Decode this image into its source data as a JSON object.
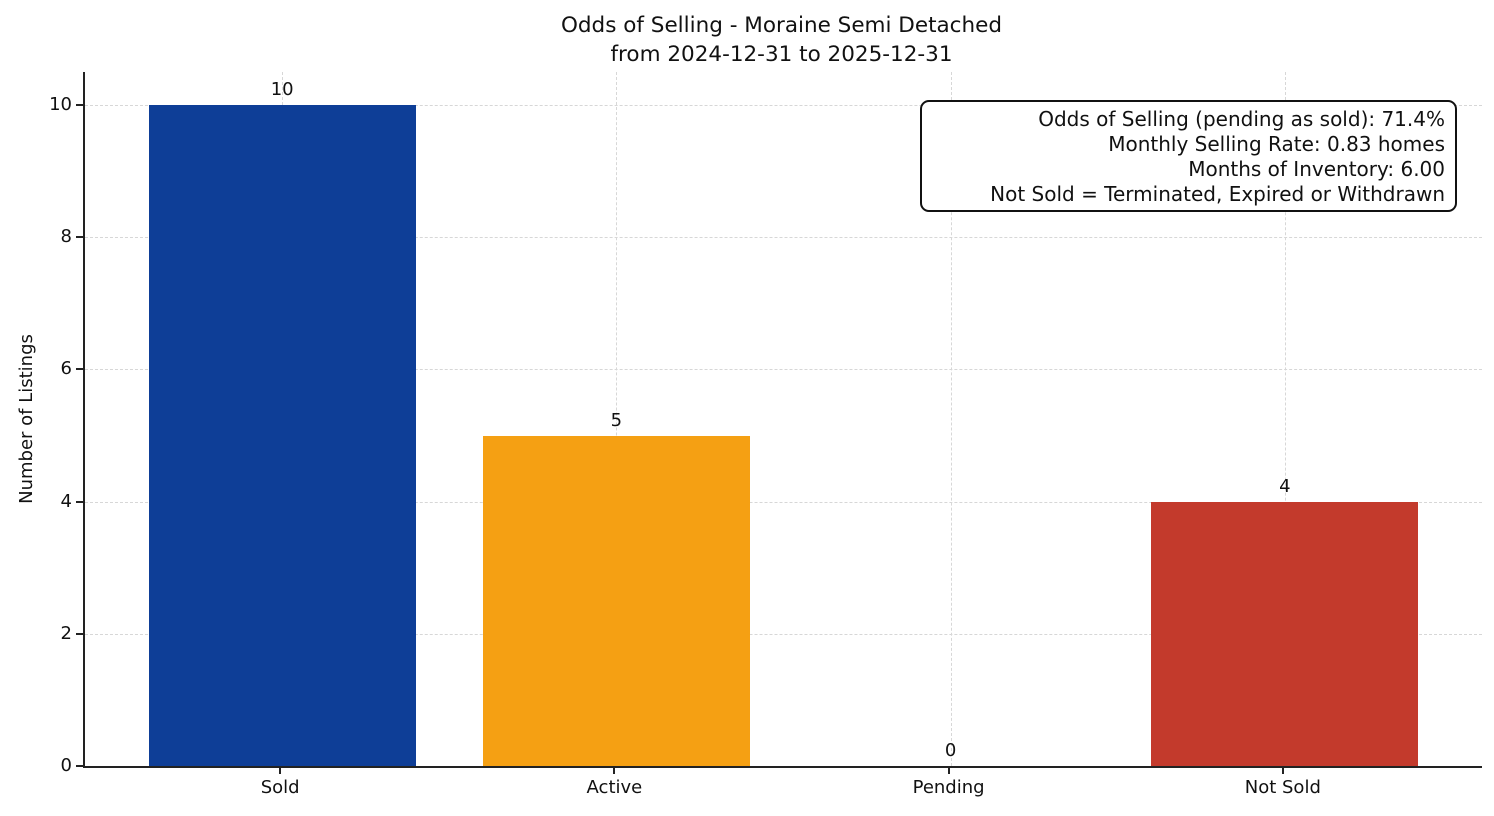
{
  "title": {
    "line1": "Odds of Selling - Moraine Semi Detached",
    "line2": "from 2024-12-31 to 2025-12-31"
  },
  "annotation": {
    "lines": [
      "Odds of Selling (pending as sold): 71.4%",
      "Monthly Selling Rate: 0.83 homes",
      "Months of Inventory: 6.00",
      "Not Sold = Terminated, Expired or Withdrawn"
    ]
  },
  "chart_data": {
    "type": "bar",
    "title": "Odds of Selling - Moraine Semi Detached\nfrom 2024-12-31 to 2025-12-31",
    "categories": [
      "Sold",
      "Active",
      "Pending",
      "Not Sold"
    ],
    "values": [
      10,
      5,
      0,
      4
    ],
    "value_labels": [
      "10",
      "5",
      "0",
      "4"
    ],
    "bar_colors": [
      "#0e3e97",
      "#f5a013",
      "#999999",
      "#c33a2c"
    ],
    "xlabel": "",
    "ylabel": "Number of Listings",
    "ylim": [
      0,
      10.5
    ],
    "yticks": [
      0,
      2,
      4,
      6,
      8,
      10
    ],
    "grid": "dashed-both-axes",
    "legend_position": "none",
    "annotation_lines": [
      "Odds of Selling (pending as sold): 71.4%",
      "Monthly Selling Rate: 0.83 homes",
      "Months of Inventory: 6.00",
      "Not Sold = Terminated, Expired or Withdrawn"
    ]
  }
}
